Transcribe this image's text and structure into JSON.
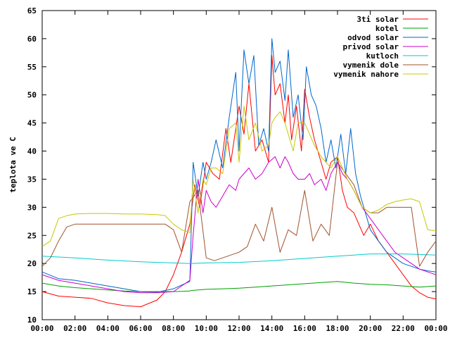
{
  "chart_data": {
    "type": "line",
    "title": "",
    "xlabel": "",
    "ylabel": "teplota ve C",
    "x_unit": "hour of day",
    "xlim": [
      0,
      24
    ],
    "ylim": [
      10,
      65
    ],
    "x_ticks": [
      {
        "value": 0,
        "label": "00:00"
      },
      {
        "value": 2,
        "label": "02:00"
      },
      {
        "value": 4,
        "label": "04:00"
      },
      {
        "value": 6,
        "label": "06:00"
      },
      {
        "value": 8,
        "label": "08:00"
      },
      {
        "value": 10,
        "label": "10:00"
      },
      {
        "value": 12,
        "label": "12:00"
      },
      {
        "value": 14,
        "label": "14:00"
      },
      {
        "value": 16,
        "label": "16:00"
      },
      {
        "value": 18,
        "label": "18:00"
      },
      {
        "value": 20,
        "label": "20:00"
      },
      {
        "value": 22,
        "label": "22:00"
      },
      {
        "value": 24,
        "label": "00:00"
      }
    ],
    "y_ticks": [
      10,
      15,
      20,
      25,
      30,
      35,
      40,
      45,
      50,
      55,
      60,
      65
    ],
    "grid": false,
    "legend_position": "top-right",
    "series": [
      {
        "name": "3ti solar",
        "color": "#ff0000",
        "x": [
          0,
          1,
          2,
          3,
          4,
          5,
          6,
          7,
          7.5,
          8,
          8.5,
          9,
          9.3,
          9.6,
          10,
          10.4,
          10.8,
          11.2,
          11.5,
          12,
          12.3,
          12.6,
          13,
          13.4,
          13.8,
          14,
          14.2,
          14.5,
          14.8,
          15,
          15.2,
          15.5,
          15.8,
          16,
          16.3,
          16.6,
          17,
          17.3,
          17.6,
          18,
          18.3,
          18.6,
          19,
          19.3,
          19.6,
          20,
          20.5,
          21,
          21.5,
          22,
          22.5,
          23,
          23.5,
          24
        ],
        "y": [
          15,
          14.2,
          14,
          13.8,
          13,
          12.5,
          12.3,
          13.5,
          15,
          18,
          22,
          27,
          34,
          30,
          38,
          36,
          35,
          44,
          38,
          48,
          43,
          52,
          40,
          42,
          38,
          57,
          50,
          52,
          45,
          50,
          42,
          48,
          40,
          51,
          46,
          42,
          38,
          35,
          38,
          39,
          33,
          30,
          29,
          27,
          25,
          27,
          24,
          22,
          20,
          18,
          16,
          14.8,
          14,
          13.7
        ]
      },
      {
        "name": "kotel",
        "color": "#00a000",
        "x": [
          0,
          1,
          2,
          3,
          4,
          5,
          6,
          7,
          8,
          9,
          9.1,
          10,
          11,
          12,
          13,
          14,
          15,
          16,
          17,
          18,
          19,
          20,
          21,
          22,
          23,
          24
        ],
        "y": [
          16.5,
          16,
          15.7,
          15.5,
          15.3,
          15.1,
          15,
          15,
          15,
          15.1,
          15.2,
          15.4,
          15.5,
          15.6,
          15.8,
          16,
          16.2,
          16.4,
          16.6,
          16.8,
          16.5,
          16.3,
          16.2,
          16,
          15.8,
          16
        ]
      },
      {
        "name": "odvod solar",
        "color": "#0066cc",
        "x": [
          0,
          1,
          2,
          3,
          4,
          5,
          6,
          7,
          8,
          9,
          9.2,
          9.5,
          9.8,
          10,
          10.3,
          10.6,
          11,
          11.4,
          11.8,
          12,
          12.3,
          12.6,
          12.9,
          13.2,
          13.5,
          13.8,
          14,
          14.2,
          14.5,
          14.8,
          15,
          15.3,
          15.6,
          15.9,
          16.1,
          16.4,
          16.7,
          17,
          17.3,
          17.6,
          17.9,
          18.2,
          18.5,
          18.8,
          19.1,
          19.4,
          19.7,
          20,
          20.5,
          21,
          21.5,
          22,
          22.5,
          23,
          23.5,
          24
        ],
        "y": [
          18.5,
          17.3,
          17,
          16.5,
          16,
          15.5,
          15,
          14.9,
          15.5,
          16.8,
          38,
          32,
          38,
          35,
          38,
          42,
          37,
          46,
          54,
          40,
          58,
          52,
          57,
          41,
          44,
          40,
          60,
          54,
          56,
          49,
          58,
          46,
          50,
          42,
          55,
          50,
          48,
          44,
          38,
          42,
          37,
          43,
          36,
          44,
          36,
          32,
          29,
          26,
          24,
          22,
          21,
          20,
          19.5,
          19,
          18.7,
          18.5
        ]
      },
      {
        "name": "privod solar",
        "color": "#cc00cc",
        "x": [
          0,
          1,
          2,
          3,
          4,
          5,
          6,
          7,
          8,
          8.5,
          9,
          9.2,
          9.5,
          9.8,
          10,
          10.3,
          10.6,
          11,
          11.4,
          11.8,
          12,
          12.3,
          12.6,
          13,
          13.4,
          13.8,
          14,
          14.2,
          14.5,
          14.8,
          15,
          15.3,
          15.6,
          16,
          16.3,
          16.6,
          17,
          17.3,
          17.6,
          18,
          18.3,
          18.6,
          19,
          19.5,
          20,
          20.5,
          21,
          21.5,
          22,
          22.5,
          23,
          23.5,
          24
        ],
        "y": [
          18,
          17,
          16.5,
          16,
          15.5,
          15,
          14.8,
          14.8,
          15,
          16,
          17,
          25,
          35,
          29,
          33,
          31,
          30,
          32,
          34,
          33,
          35,
          36,
          37,
          35,
          36,
          38,
          38.5,
          39,
          37,
          39,
          38,
          36,
          35,
          35,
          36,
          34,
          35,
          33,
          36,
          38,
          36,
          35,
          33,
          30,
          28,
          26,
          24,
          22,
          21,
          20,
          19,
          18.5,
          18
        ]
      },
      {
        "name": "kutloch",
        "color": "#00cccc",
        "x": [
          0,
          2,
          4,
          6,
          8,
          9,
          10,
          12,
          14,
          16,
          18,
          19,
          20,
          22,
          23,
          24
        ],
        "y": [
          21.3,
          21,
          20.6,
          20.3,
          20.1,
          20,
          20.1,
          20.2,
          20.5,
          20.9,
          21.3,
          21.5,
          21.7,
          21.7,
          21.6,
          21.5
        ]
      },
      {
        "name": "vymenik dole",
        "color": "#a0522d",
        "x": [
          0,
          0.5,
          1,
          1.5,
          2,
          3,
          4,
          5,
          6,
          7,
          7.5,
          8,
          8.5,
          9,
          9.5,
          10,
          10.5,
          11,
          11.5,
          12,
          12.5,
          13,
          13.5,
          14,
          14.5,
          15,
          15.5,
          16,
          16.5,
          17,
          17.5,
          18,
          18.5,
          19,
          19.5,
          20,
          20.5,
          21,
          21.5,
          22,
          22.5,
          23,
          23.5,
          24
        ],
        "y": [
          19.5,
          21,
          24,
          26.5,
          27,
          27,
          27,
          27,
          27,
          27,
          27,
          26,
          22,
          31,
          33,
          21,
          20.5,
          21,
          21.5,
          22,
          23,
          27,
          24,
          30,
          22,
          26,
          25,
          33,
          24,
          27,
          25,
          38,
          36,
          34,
          30,
          29,
          29,
          30,
          30,
          30,
          30,
          19.5,
          22,
          24
        ]
      },
      {
        "name": "vymenik nahore",
        "color": "#c8c800",
        "x": [
          0,
          0.5,
          1,
          1.5,
          2,
          3,
          4,
          5,
          6,
          7,
          7.5,
          8,
          8.5,
          9,
          9.2,
          9.5,
          9.8,
          10,
          10.3,
          10.6,
          11,
          11.4,
          11.8,
          12,
          12.3,
          12.6,
          13,
          13.4,
          13.8,
          14,
          14.2,
          14.5,
          14.8,
          15,
          15.3,
          15.6,
          16,
          16.3,
          16.6,
          17,
          17.3,
          17.6,
          18,
          18.3,
          18.6,
          19,
          19.5,
          20,
          20.5,
          21,
          21.5,
          22,
          22.5,
          23,
          23.5,
          24
        ],
        "y": [
          23,
          24,
          28,
          28.5,
          28.8,
          28.9,
          28.9,
          28.8,
          28.8,
          28.7,
          28.5,
          27,
          26,
          25.5,
          35,
          29,
          35,
          34,
          37,
          37,
          36,
          44,
          45,
          38,
          48,
          42,
          45,
          40,
          41,
          45,
          46,
          47,
          45,
          43,
          40,
          45,
          45,
          43,
          41,
          39,
          38,
          37,
          39,
          37,
          35,
          33,
          30,
          29,
          29.5,
          30.5,
          31,
          31.3,
          31.5,
          31,
          26,
          25.8
        ]
      }
    ]
  }
}
